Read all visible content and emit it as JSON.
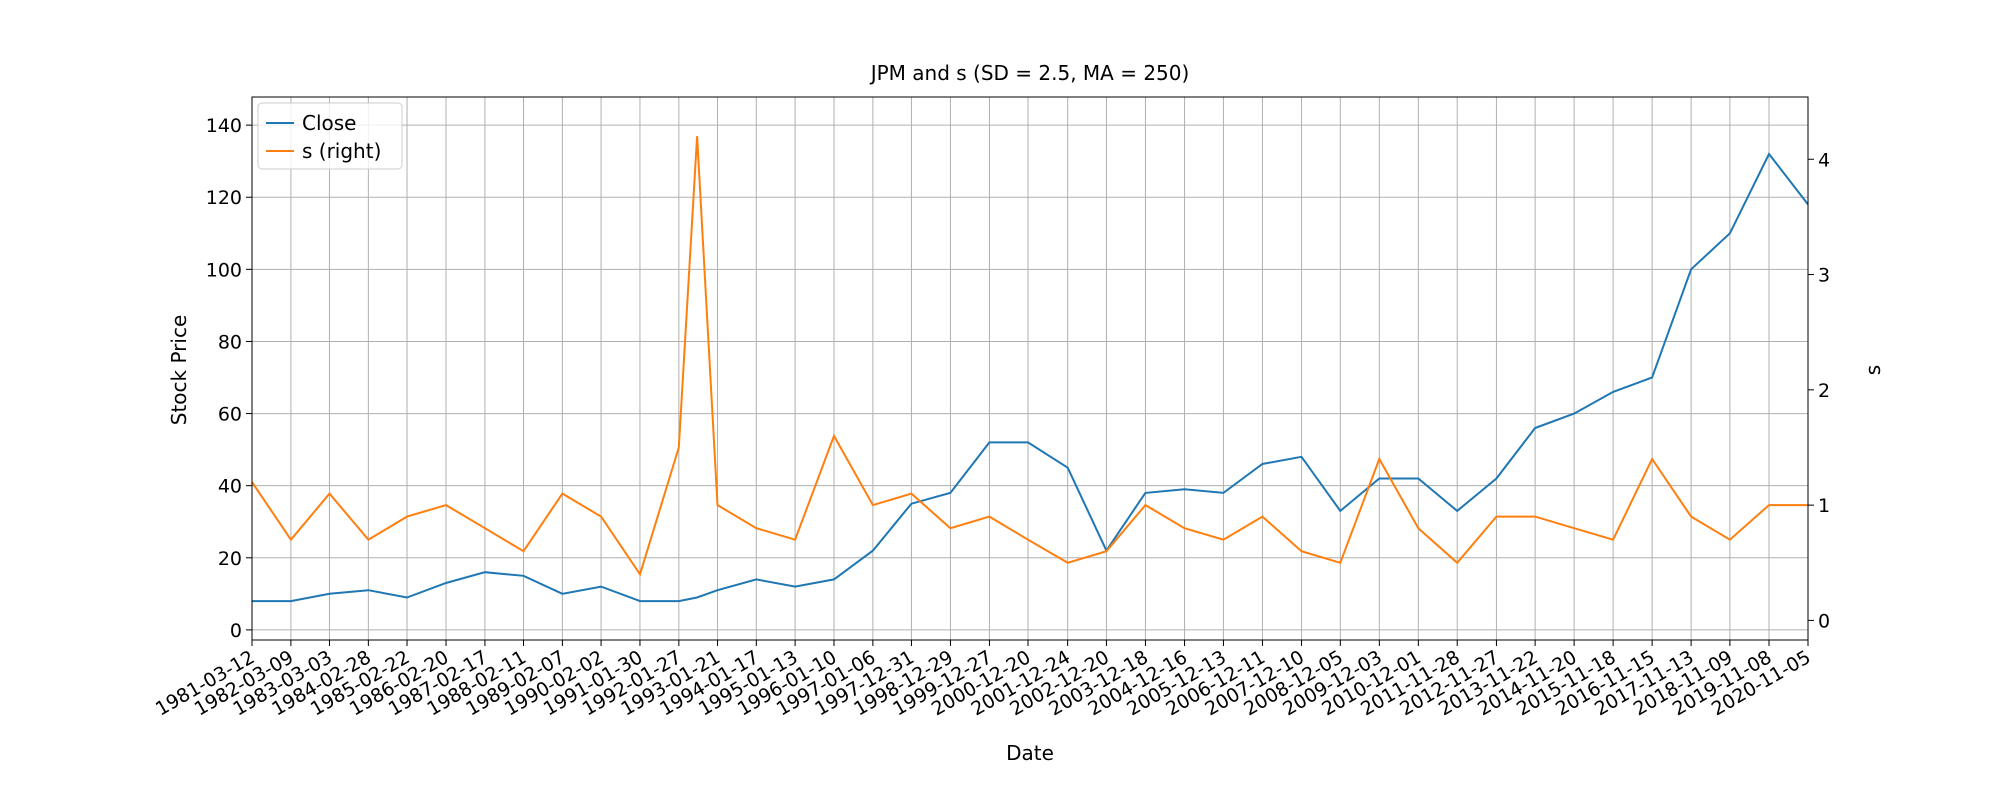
{
  "chart_data": {
    "type": "line",
    "title": "JPM and s (SD = 2.5, MA = 250)",
    "xlabel": "Date",
    "ylabel": "Stock Price",
    "y2label": "s",
    "x": [
      "1981-03-12",
      "1982-03-09",
      "1983-03-03",
      "1984-02-28",
      "1985-02-22",
      "1986-02-20",
      "1987-02-17",
      "1988-02-11",
      "1989-02-07",
      "1990-02-02",
      "1991-01-30",
      "1992-01-27",
      "1992-07-15",
      "1993-01-21",
      "1994-01-17",
      "1995-01-13",
      "1996-01-10",
      "1997-01-06",
      "1997-12-31",
      "1998-12-29",
      "1999-12-27",
      "2000-12-20",
      "2001-12-24",
      "2002-12-20",
      "2003-12-18",
      "2004-12-16",
      "2005-12-13",
      "2006-12-11",
      "2007-12-10",
      "2008-12-05",
      "2009-12-03",
      "2010-12-01",
      "2011-11-28",
      "2012-11-27",
      "2013-11-22",
      "2014-11-20",
      "2015-11-18",
      "2016-11-15",
      "2017-11-13",
      "2018-11-09",
      "2019-11-08",
      "2020-11-05"
    ],
    "series": [
      {
        "name": "Close",
        "color": "#1f77b4",
        "values": [
          8,
          8,
          10,
          11,
          9,
          13,
          16,
          15,
          10,
          12,
          8,
          8,
          9,
          11,
          14,
          12,
          14,
          22,
          35,
          38,
          52,
          52,
          45,
          22,
          38,
          39,
          38,
          46,
          48,
          33,
          42,
          42,
          33,
          42,
          56,
          60,
          66,
          70,
          100,
          110,
          132,
          118
        ]
      },
      {
        "name": "s (right)",
        "color": "#ff7f0e",
        "axis": "y2",
        "values": [
          1.2,
          0.7,
          1.1,
          0.7,
          0.9,
          1.0,
          0.8,
          0.6,
          1.1,
          0.9,
          0.4,
          1.5,
          4.2,
          1.0,
          0.8,
          0.7,
          1.6,
          1.0,
          1.1,
          0.8,
          0.9,
          0.7,
          0.5,
          0.6,
          1.0,
          0.8,
          0.7,
          0.9,
          0.6,
          0.5,
          1.4,
          0.8,
          0.5,
          0.9,
          0.9,
          0.8,
          0.7,
          1.4,
          0.9,
          0.7,
          1.0,
          1.0
        ]
      }
    ],
    "xlim": [
      "1981-03-12",
      "2020-11-05"
    ],
    "xticks": [
      "1981-03-12",
      "1982-03-09",
      "1983-03-03",
      "1984-02-28",
      "1985-02-22",
      "1986-02-20",
      "1987-02-17",
      "1988-02-11",
      "1989-02-07",
      "1990-02-02",
      "1991-01-30",
      "1992-01-27",
      "1993-01-21",
      "1994-01-17",
      "1995-01-13",
      "1996-01-10",
      "1997-01-06",
      "1997-12-31",
      "1998-12-29",
      "1999-12-27",
      "2000-12-20",
      "2001-12-24",
      "2002-12-20",
      "2003-12-18",
      "2004-12-16",
      "2005-12-13",
      "2006-12-11",
      "2007-12-10",
      "2008-12-05",
      "2009-12-03",
      "2010-12-01",
      "2011-11-28",
      "2012-11-27",
      "2013-11-22",
      "2014-11-20",
      "2015-11-18",
      "2016-11-15",
      "2017-11-13",
      "2018-11-09",
      "2019-11-08",
      "2020-11-05"
    ],
    "ylim": [
      -2.8,
      147.8
    ],
    "yticks": [
      0,
      20,
      40,
      60,
      80,
      100,
      120,
      140
    ],
    "y2lim": [
      -0.17,
      4.54
    ],
    "y2ticks": [
      0,
      1,
      2,
      3,
      4
    ],
    "grid": true,
    "legend": "upper left"
  }
}
